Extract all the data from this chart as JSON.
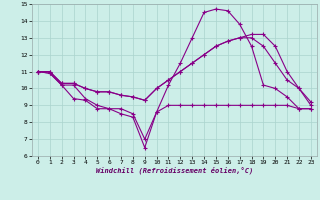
{
  "xlabel": "Windchill (Refroidissement éolien,°C)",
  "bg_color": "#cceee8",
  "grid_color": "#aad4ce",
  "line_color": "#880088",
  "xlim": [
    -0.5,
    23.5
  ],
  "ylim": [
    6,
    15
  ],
  "xticks": [
    0,
    1,
    2,
    3,
    4,
    5,
    6,
    7,
    8,
    9,
    10,
    11,
    12,
    13,
    14,
    15,
    16,
    17,
    18,
    19,
    20,
    21,
    22,
    23
  ],
  "yticks": [
    6,
    7,
    8,
    9,
    10,
    11,
    12,
    13,
    14,
    15
  ],
  "lines": [
    {
      "x": [
        0,
        1,
        2,
        3,
        4,
        5,
        6,
        7,
        8,
        9,
        10,
        11,
        12,
        13,
        14,
        15,
        16,
        17,
        18,
        19,
        20,
        21,
        22,
        23
      ],
      "y": [
        11.0,
        10.9,
        10.2,
        9.4,
        9.3,
        8.8,
        8.8,
        8.8,
        8.5,
        7.0,
        8.6,
        9.0,
        9.0,
        9.0,
        9.0,
        9.0,
        9.0,
        9.0,
        9.0,
        9.0,
        9.0,
        9.0,
        8.8,
        8.8
      ]
    },
    {
      "x": [
        0,
        1,
        2,
        3,
        4,
        5,
        6,
        7,
        8,
        9,
        10,
        11,
        12,
        13,
        14,
        15,
        16,
        17,
        18,
        19,
        20,
        21,
        22,
        23
      ],
      "y": [
        11.0,
        10.9,
        10.2,
        10.2,
        9.4,
        9.0,
        8.8,
        8.5,
        8.3,
        6.5,
        8.6,
        10.2,
        11.5,
        13.0,
        14.5,
        14.7,
        14.6,
        13.8,
        12.5,
        10.2,
        10.0,
        9.5,
        8.8,
        8.8
      ]
    },
    {
      "x": [
        0,
        1,
        2,
        3,
        4,
        5,
        6,
        7,
        8,
        9,
        10,
        11,
        12,
        13,
        14,
        15,
        16,
        17,
        18,
        19,
        20,
        21,
        22,
        23
      ],
      "y": [
        11.0,
        11.0,
        10.3,
        10.3,
        10.0,
        9.8,
        9.8,
        9.6,
        9.5,
        9.3,
        10.0,
        10.5,
        11.0,
        11.5,
        12.0,
        12.5,
        12.8,
        13.0,
        13.2,
        13.2,
        12.5,
        11.0,
        10.0,
        9.0
      ]
    },
    {
      "x": [
        0,
        1,
        2,
        3,
        4,
        5,
        6,
        7,
        8,
        9,
        10,
        11,
        12,
        13,
        14,
        15,
        16,
        17,
        18,
        19,
        20,
        21,
        22,
        23
      ],
      "y": [
        11.0,
        11.0,
        10.3,
        10.3,
        10.0,
        9.8,
        9.8,
        9.6,
        9.5,
        9.3,
        10.0,
        10.5,
        11.0,
        11.5,
        12.0,
        12.5,
        12.8,
        13.0,
        13.0,
        12.5,
        11.5,
        10.5,
        10.0,
        9.2
      ]
    }
  ]
}
